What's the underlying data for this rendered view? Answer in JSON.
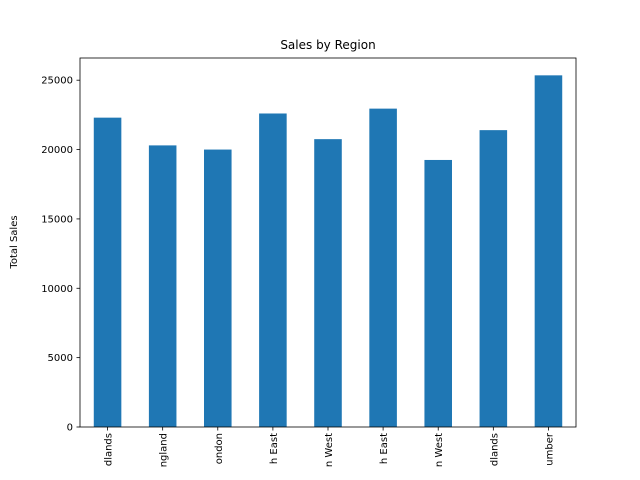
{
  "chart_data": {
    "type": "bar",
    "title": "Sales by Region",
    "xlabel": "",
    "ylabel": "Total Sales",
    "categories": [
      "dlands",
      "ngland",
      "ondon",
      "h East",
      "n West",
      "h East",
      "n West",
      "dlands",
      "umber"
    ],
    "values": [
      22300,
      20300,
      20000,
      22600,
      20750,
      22950,
      19250,
      21400,
      25350
    ],
    "yticks": [
      0,
      5000,
      10000,
      15000,
      20000,
      25000
    ],
    "ylim": [
      0,
      26600
    ],
    "grid": false,
    "bar_color": "#1f77b4"
  }
}
